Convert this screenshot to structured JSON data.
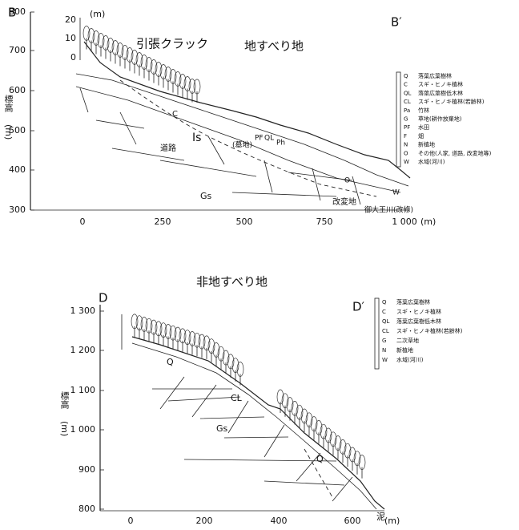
{
  "landslide": {
    "title": "地すべり地",
    "left_label": "B",
    "right_label": "B′",
    "annotation": "引張クラック",
    "y_label": "標高",
    "y_unit": "(m)",
    "yticks": [
      "800",
      "700",
      "600",
      "500",
      "400",
      "300"
    ],
    "xticks": [
      "0",
      "250",
      "500",
      "750",
      "1 000"
    ],
    "x_unit": "(m)",
    "scale_unit": "(m)",
    "scale_ticks": [
      "20",
      "10",
      "0"
    ],
    "labels": [
      "Is",
      "Gs",
      "道路",
      "(墓地)",
      "改変地",
      "御大王川(改修)",
      "W",
      "C",
      "PF",
      "QL",
      "Ph",
      "O"
    ],
    "legend": [
      [
        "Q",
        "落葉広葉樹林"
      ],
      [
        "C",
        "スギ・ヒノキ植林"
      ],
      [
        "QL",
        "落葉広葉樹低木林"
      ],
      [
        "CL",
        "スギ・ヒノキ植林(若齢林)"
      ],
      [
        "Pa",
        "竹林"
      ],
      [
        "G",
        "草地(耕作放棄地)"
      ],
      [
        "PF",
        "水田"
      ],
      [
        "F",
        "畑"
      ],
      [
        "N",
        "新植地"
      ],
      [
        "O",
        "その他(人家, 道路, 改変地等)"
      ],
      [
        "W",
        "水域(河川)"
      ]
    ]
  },
  "non_landslide": {
    "title": "非地すべり地",
    "left_label": "D",
    "right_label": "D′",
    "y_label": "標高",
    "y_unit": "(m)",
    "yticks": [
      "1 300",
      "1 200",
      "1 100",
      "1 000",
      "900",
      "800"
    ],
    "xticks": [
      "0",
      "200",
      "400",
      "600"
    ],
    "x_unit": "(m)",
    "labels": [
      "Q",
      "CL",
      "Gs",
      "Q",
      "泥"
    ],
    "legend": [
      [
        "Q",
        "落葉広葉樹林"
      ],
      [
        "C",
        "スギ・ヒノキ植林"
      ],
      [
        "QL",
        "落葉広葉樹低木林"
      ],
      [
        "CL",
        "スギ・ヒノキ植林(若齢林)"
      ],
      [
        "G",
        "二次草地"
      ],
      [
        "N",
        "新植地"
      ],
      [
        "W",
        "水域(河川)"
      ]
    ]
  }
}
